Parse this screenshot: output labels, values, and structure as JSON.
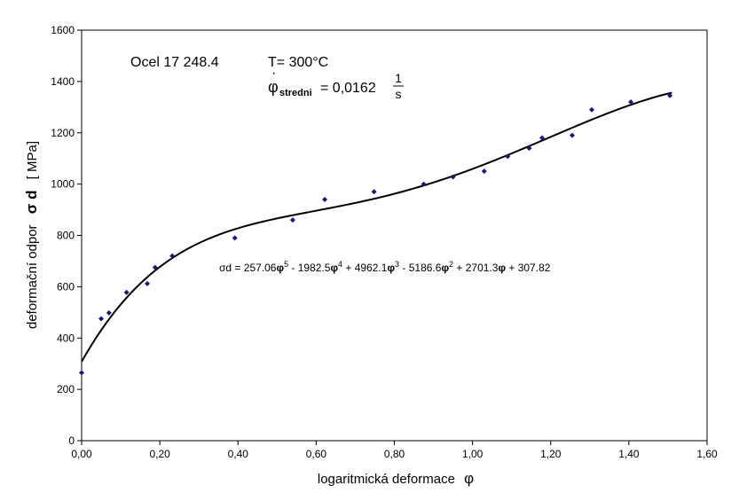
{
  "chart_data": {
    "type": "scatter",
    "title": "",
    "xlabel_prefix": "logaritmická deformace",
    "xlabel_symbol": "φ",
    "ylabel_prefix": "deformační odpor",
    "ylabel_symbol": "σ d",
    "ylabel_unit": "[ MPa]",
    "xlim": [
      0,
      1.6
    ],
    "ylim": [
      0,
      1600
    ],
    "x_ticks": [
      "0,00",
      "0,20",
      "0,40",
      "0,60",
      "0,80",
      "1,00",
      "1,20",
      "1,40",
      "1,60"
    ],
    "y_ticks": [
      "0",
      "200",
      "400",
      "600",
      "800",
      "1000",
      "1200",
      "1400",
      "1600"
    ],
    "grid": false,
    "legend": "none",
    "series": [
      {
        "points": [
          [
            0.0,
            265
          ],
          [
            0.05,
            475
          ],
          [
            0.07,
            498
          ],
          [
            0.115,
            578
          ],
          [
            0.168,
            612
          ],
          [
            0.188,
            675
          ],
          [
            0.232,
            720
          ],
          [
            0.392,
            790
          ],
          [
            0.54,
            860
          ],
          [
            0.622,
            940
          ],
          [
            0.748,
            970
          ],
          [
            0.875,
            1000
          ],
          [
            0.95,
            1028
          ],
          [
            1.03,
            1050
          ],
          [
            1.09,
            1108
          ],
          [
            1.145,
            1140
          ],
          [
            1.178,
            1180
          ],
          [
            1.255,
            1190
          ],
          [
            1.305,
            1290
          ],
          [
            1.405,
            1320
          ],
          [
            1.505,
            1345
          ]
        ]
      }
    ],
    "trendline": {
      "type": "polynomial",
      "coefficients_high_to_low": [
        257.06,
        -1982.5,
        4962.1,
        -5186.6,
        2701.3,
        307.82
      ],
      "x_range": [
        0,
        1.51
      ]
    },
    "annotations": {
      "material": "Ocel 17 248.4",
      "temperature": "T= 300°C",
      "rate_symbol": "φ",
      "rate_subscript": "stredni",
      "rate_value": "= 0,0162",
      "rate_unit_num": "1",
      "rate_unit_den": "s",
      "equation": {
        "lhs": "σd = ",
        "terms": [
          {
            "coef": "257.06",
            "var": "φ",
            "exp": "5"
          },
          {
            "coef": " - 1982.5",
            "var": "φ",
            "exp": "4"
          },
          {
            "coef": " + 4962.1",
            "var": "φ",
            "exp": "3"
          },
          {
            "coef": " - 5186.6",
            "var": "φ",
            "exp": "2"
          },
          {
            "coef": " + 2701.3",
            "var": "φ",
            "exp": ""
          }
        ],
        "constant": " + 307.82"
      }
    },
    "colors": {
      "marker": "#1a1a6e",
      "trendline": "#000000",
      "axis": "#000000"
    }
  }
}
